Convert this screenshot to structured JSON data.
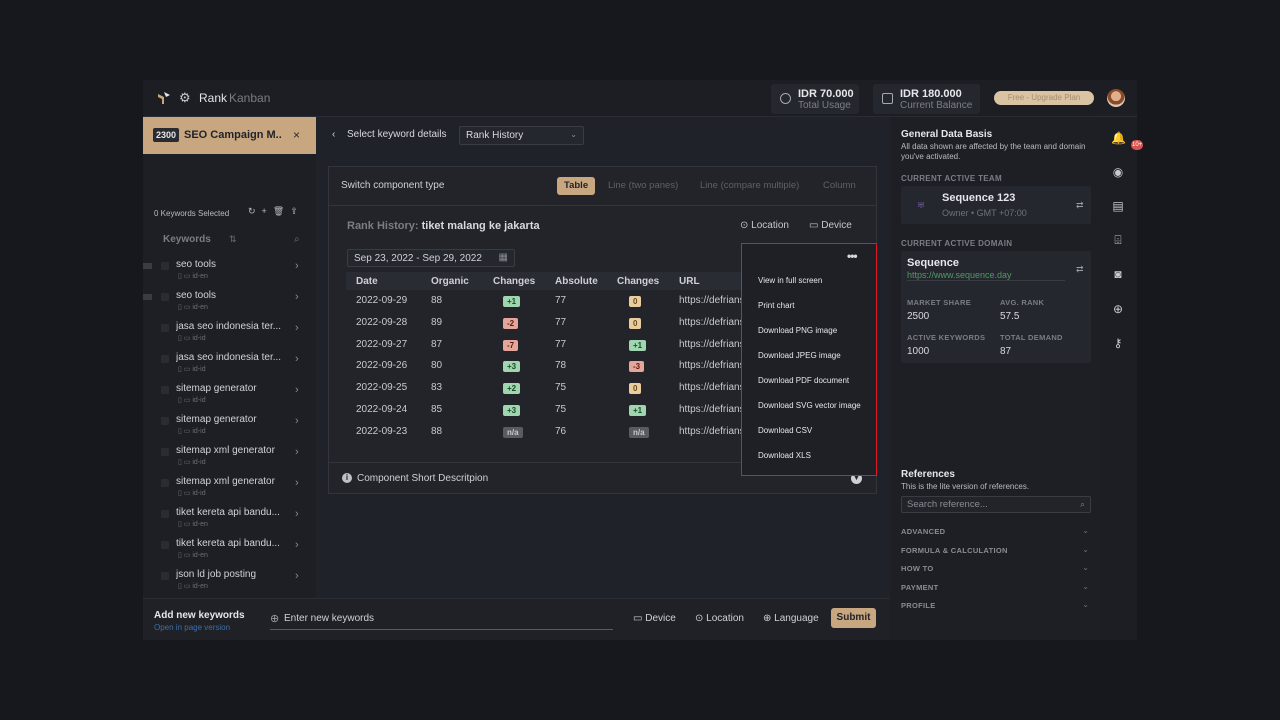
{
  "topbar": {
    "nav_rank": "Rank",
    "nav_kanban": "Kanban",
    "usage_value": "IDR 70.000",
    "usage_label": "Total Usage",
    "balance_value": "IDR 180.000",
    "balance_label": "Current Balance",
    "upgrade_label": "Free - Upgrade Plan"
  },
  "campaign": {
    "count": "2300",
    "name": "SEO Campaign M..",
    "close": "×"
  },
  "keywords": {
    "selected_text": "0 Keywords Selected",
    "header": "Keywords",
    "items": [
      {
        "text": "seo tools",
        "locale": "id-en"
      },
      {
        "text": "seo tools",
        "locale": "id-en"
      },
      {
        "text": "jasa seo indonesia ter...",
        "locale": "id-id"
      },
      {
        "text": "jasa seo indonesia ter...",
        "locale": "id-id"
      },
      {
        "text": "sitemap generator",
        "locale": "id-id"
      },
      {
        "text": "sitemap generator",
        "locale": "id-id"
      },
      {
        "text": "sitemap xml generator",
        "locale": "id-id"
      },
      {
        "text": "sitemap xml generator",
        "locale": "id-id"
      },
      {
        "text": "tiket kereta api bandu...",
        "locale": "id-en"
      },
      {
        "text": "tiket kereta api bandu...",
        "locale": "id-en"
      },
      {
        "text": "json ld job posting",
        "locale": "id-en"
      }
    ]
  },
  "center": {
    "select_label": "Select keyword details",
    "select_value": "Rank History",
    "switch_label": "Switch component type",
    "component_types": [
      "Table",
      "Line (two panes)",
      "Line (compare multiple)",
      "Column"
    ],
    "rank_history_prefix": "Rank History:",
    "rank_history_keyword": "tiket malang ke jakarta",
    "location_label": "Location",
    "device_label": "Device",
    "date_range": "Sep 23, 2022 - Sep 29, 2022",
    "table": {
      "headers": [
        "Date",
        "Organic",
        "Changes",
        "Absolute",
        "Changes",
        "URL"
      ],
      "rows": [
        {
          "date": "2022-09-29",
          "organic": "88",
          "ch1": "+1",
          "ch1_type": "g",
          "absolute": "77",
          "ch2": "0",
          "ch2_type": "o",
          "url": "https://defriansy"
        },
        {
          "date": "2022-09-28",
          "organic": "89",
          "ch1": "-2",
          "ch1_type": "r",
          "absolute": "77",
          "ch2": "0",
          "ch2_type": "o",
          "url": "https://defriansy"
        },
        {
          "date": "2022-09-27",
          "organic": "87",
          "ch1": "-7",
          "ch1_type": "r",
          "absolute": "77",
          "ch2": "+1",
          "ch2_type": "g",
          "url": "https://defriansy"
        },
        {
          "date": "2022-09-26",
          "organic": "80",
          "ch1": "+3",
          "ch1_type": "g",
          "absolute": "78",
          "ch2": "-3",
          "ch2_type": "r",
          "url": "https://defriansy"
        },
        {
          "date": "2022-09-25",
          "organic": "83",
          "ch1": "+2",
          "ch1_type": "g",
          "absolute": "75",
          "ch2": "0",
          "ch2_type": "o",
          "url": "https://defriansy"
        },
        {
          "date": "2022-09-24",
          "organic": "85",
          "ch1": "+3",
          "ch1_type": "g",
          "absolute": "75",
          "ch2": "+1",
          "ch2_type": "g",
          "url": "https://defriansy"
        },
        {
          "date": "2022-09-23",
          "organic": "88",
          "ch1": "n/a",
          "ch1_type": "n",
          "absolute": "76",
          "ch2": "n/a",
          "ch2_type": "n",
          "url": "https://defriansy"
        }
      ]
    },
    "component_desc": "Component Short Descritpion"
  },
  "export_menu": {
    "dots": "•••",
    "items": [
      "View in full screen",
      "Print chart",
      "Download PNG image",
      "Download JPEG image",
      "Download PDF document",
      "Download SVG vector image",
      "Download CSV",
      "Download XLS"
    ]
  },
  "bottom": {
    "title": "Add new keywords",
    "link": "Open in page version",
    "input_placeholder": "Enter new keywords",
    "device": "Device",
    "location": "Location",
    "language": "Language",
    "submit": "Submit"
  },
  "right": {
    "gdb_title": "General Data Basis",
    "gdb_sub": "All data shown are affected by the team and domain you've activated.",
    "team_caption": "CURRENT ACTIVE TEAM",
    "team_name": "Sequence 123",
    "team_sub": "Owner • GMT +07:00",
    "domain_caption": "CURRENT ACTIVE DOMAIN",
    "domain_name": "Sequence",
    "domain_url": "https://www.sequence.day",
    "market_share_label": "MARKET SHARE",
    "market_share": "2500",
    "avg_rank_label": "AVG. RANK",
    "avg_rank": "57.5",
    "active_kw_label": "ACTIVE KEYWORDS",
    "active_kw": "1000",
    "total_demand_label": "TOTAL DEMAND",
    "total_demand": "87",
    "ref_title": "References",
    "ref_sub": "This is the lite version of references.",
    "ref_placeholder": "Search reference...",
    "accordions": [
      "ADVANCED",
      "FORMULA & CALCULATION",
      "HOW TO",
      "PAYMENT",
      "PROFILE"
    ]
  },
  "rail": {
    "notif_count": "10+"
  },
  "colors": {
    "accent": "#c8a780",
    "highlight_border": "#e0192a",
    "positive": "#9fd6b0",
    "negative": "#e4a69a"
  }
}
